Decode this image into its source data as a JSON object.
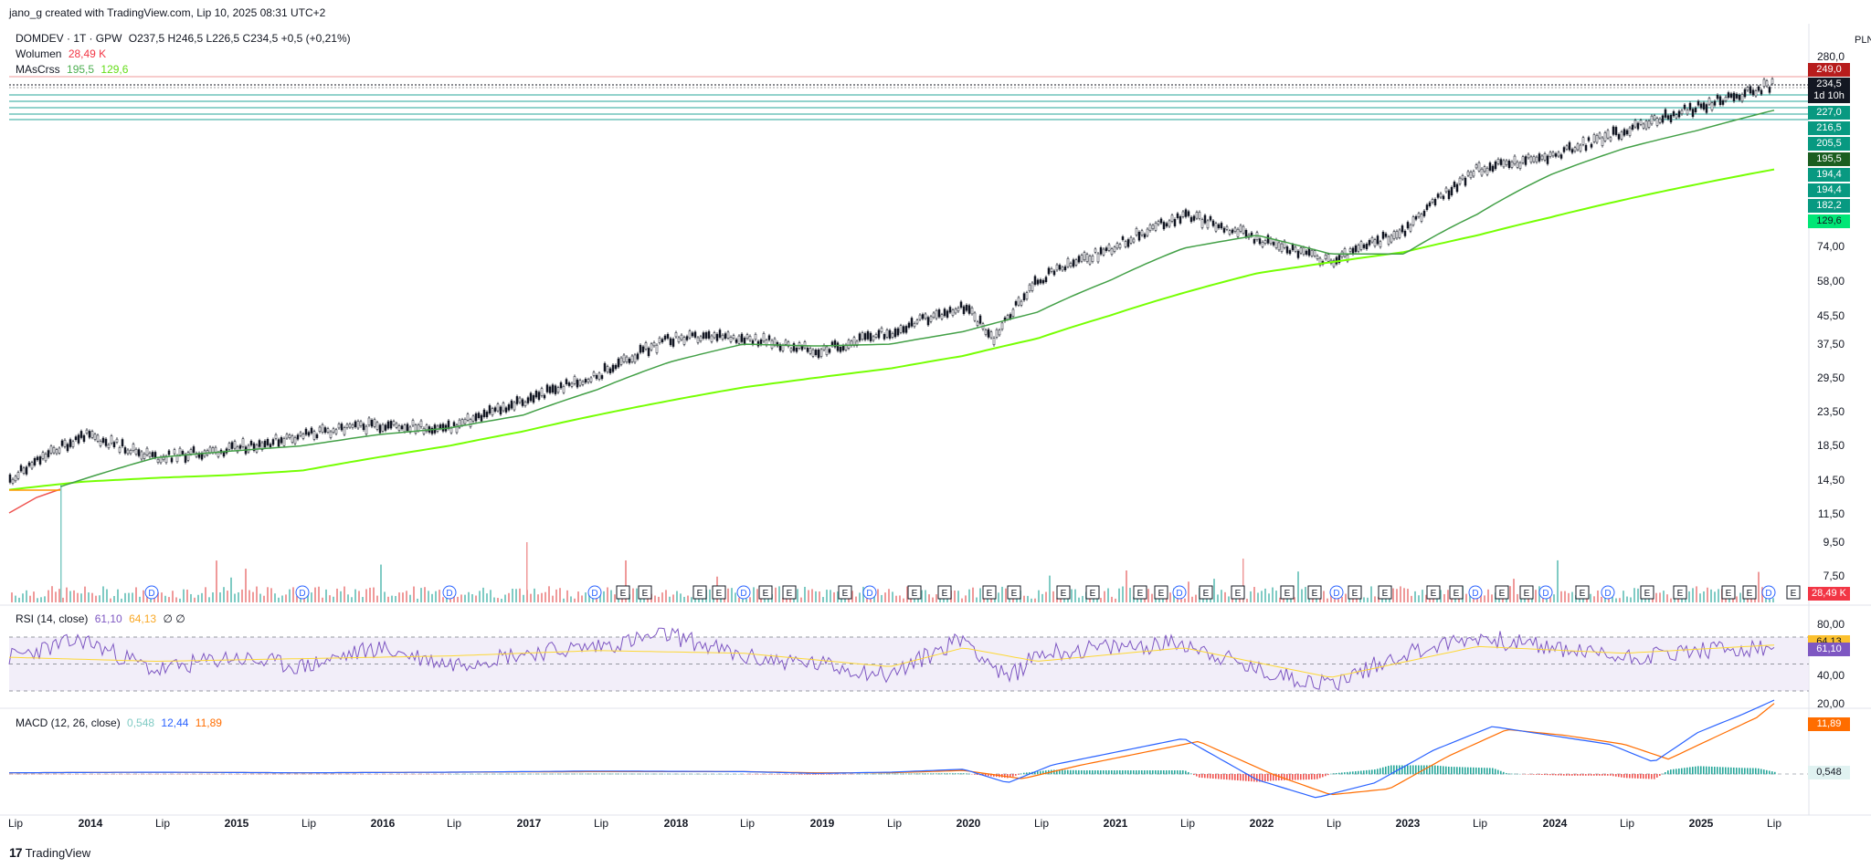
{
  "header": {
    "text": "jano_g created with TradingView.com, Lip 10, 2025 08:31 UTC+2"
  },
  "footer": {
    "brand": "TradingView"
  },
  "price_legend": {
    "symbol": "DOMDEV · 1T · GPW",
    "ohlc": "O237,5  H246,5  L226,5  C234,5  +0,5 (+0,21%)",
    "volume_label": "Wolumen",
    "volume_value": "28,49 K",
    "ma_label": "MAsCrss",
    "ma1_value": "195,5",
    "ma2_value": "129,6"
  },
  "rsi_legend": {
    "label": "RSI (14, close)",
    "v1": "61,10",
    "v2": "64,13",
    "v3": "∅  ∅"
  },
  "macd_legend": {
    "label": "MACD (12, 26, close)",
    "v1": "0,548",
    "v2": "12,44",
    "v3": "11,89"
  },
  "currency": "PLN",
  "colors": {
    "ma_fast": "#4caf50",
    "ma_slow": "#76ff03",
    "rsi": "#7e57c2",
    "rsi_ma": "#fdd835",
    "macd": "#2962ff",
    "signal": "#ff6d00",
    "up": "#26a69a",
    "down": "#ef5350"
  },
  "chart_data": [
    {
      "type": "line",
      "title": "DOMDEV · 1T · GPW",
      "scale": "log",
      "x_ticks": [
        "Lip",
        "2014",
        "Lip",
        "2015",
        "Lip",
        "2016",
        "Lip",
        "2017",
        "Lip",
        "2018",
        "Lip",
        "2019",
        "Lip",
        "2020",
        "Lip",
        "2021",
        "Lip",
        "2022",
        "Lip",
        "2023",
        "Lip",
        "2024",
        "Lip",
        "2025",
        "Lip"
      ],
      "y_ticks": [
        "280,0",
        "74,00",
        "58,00",
        "45,50",
        "37,50",
        "29,50",
        "23,50",
        "18,50",
        "14,50",
        "11,50",
        "9,50",
        "7,50"
      ],
      "price_labels": [
        {
          "text": "249,0",
          "color": "#b71c1c"
        },
        {
          "text": "234,5",
          "color": "#131722"
        },
        {
          "text": "1d 10h",
          "color": "#131722"
        },
        {
          "text": "227,0",
          "color": "#089981"
        },
        {
          "text": "216,5",
          "color": "#089981"
        },
        {
          "text": "205,5",
          "color": "#089981"
        },
        {
          "text": "195,5",
          "color": "#1b5e20"
        },
        {
          "text": "194,4",
          "color": "#089981"
        },
        {
          "text": "194,4",
          "color": "#089981"
        },
        {
          "text": "182,2",
          "color": "#089981"
        },
        {
          "text": "129,6",
          "color": "#00e676"
        },
        {
          "text": "28,49 K",
          "color": "#f23645"
        }
      ],
      "series": [
        {
          "name": "DOMDEV",
          "x": [
            2013.5,
            2014.0,
            2014.5,
            2015.0,
            2015.5,
            2016.0,
            2016.5,
            2017.0,
            2017.5,
            2018.0,
            2018.5,
            2019.0,
            2019.5,
            2020.0,
            2020.2,
            2020.5,
            2021.0,
            2021.5,
            2022.0,
            2022.5,
            2023.0,
            2023.5,
            2024.0,
            2024.5,
            2025.0,
            2025.52
          ],
          "values": [
            15.0,
            20.5,
            17.5,
            18.5,
            20.5,
            22.0,
            21.5,
            26.0,
            31.0,
            40.0,
            40.5,
            36.5,
            42.0,
            50.0,
            40.0,
            60.0,
            75.0,
            95.0,
            80.0,
            68.0,
            85.0,
            130.0,
            142.0,
            170.0,
            200.0,
            234.5
          ]
        },
        {
          "name": "MA fast",
          "x": [
            2013.85,
            2014.5,
            2015.0,
            2015.5,
            2016.0,
            2016.5,
            2017.0,
            2017.5,
            2018.0,
            2018.5,
            2019.0,
            2019.5,
            2020.0,
            2020.5,
            2021.0,
            2021.5,
            2022.0,
            2022.5,
            2023.0,
            2023.5,
            2024.0,
            2024.5,
            2025.0,
            2025.52
          ],
          "values": [
            14.3,
            17.5,
            18.3,
            19.0,
            20.5,
            21.5,
            23.5,
            28.0,
            34.0,
            38.5,
            38.0,
            38.5,
            42.0,
            48.0,
            60.0,
            75.0,
            82.0,
            72.0,
            72.0,
            95.0,
            125.0,
            150.0,
            170.0,
            195.5
          ]
        },
        {
          "name": "MA slow",
          "x": [
            2013.5,
            2014.0,
            2014.5,
            2015.0,
            2015.5,
            2016.0,
            2016.5,
            2017.0,
            2017.5,
            2018.0,
            2018.5,
            2019.0,
            2019.5,
            2020.0,
            2020.5,
            2021.0,
            2021.5,
            2022.0,
            2022.5,
            2023.0,
            2023.5,
            2024.0,
            2024.5,
            2025.0,
            2025.52
          ],
          "values": [
            14.0,
            14.8,
            15.2,
            15.5,
            16.0,
            17.5,
            19.0,
            21.0,
            23.5,
            26.0,
            28.5,
            30.5,
            32.5,
            35.5,
            40.0,
            47.0,
            55.0,
            63.0,
            68.0,
            73.0,
            82.0,
            93.0,
            105.0,
            117.0,
            129.6
          ]
        }
      ]
    },
    {
      "type": "line",
      "title": "RSI (14, close)",
      "y_ticks": [
        "80,00",
        "40,00",
        "20,00"
      ],
      "bands": [
        30,
        50,
        70
      ],
      "series": [
        {
          "x": [
            2013.5,
            2014.0,
            2014.5,
            2015.0,
            2015.5,
            2016.0,
            2016.5,
            2017.0,
            2017.5,
            2018.0,
            2018.5,
            2019.0,
            2019.5,
            2020.0,
            2020.3,
            2020.5,
            2021.0,
            2021.5,
            2022.0,
            2022.5,
            2023.0,
            2023.5,
            2024.0,
            2024.5,
            2025.0,
            2025.52
          ],
          "values": [
            55,
            68,
            45,
            55,
            48,
            62,
            50,
            58,
            63,
            72,
            55,
            50,
            42,
            70,
            38,
            58,
            62,
            66,
            45,
            35,
            58,
            70,
            62,
            55,
            60,
            61.1
          ]
        },
        {
          "x": [
            2013.5,
            2014.5,
            2015.5,
            2016.5,
            2017.5,
            2018.5,
            2019.5,
            2020.0,
            2020.5,
            2021.5,
            2022.5,
            2023.5,
            2024.5,
            2025.52
          ],
          "values": [
            55,
            52,
            54,
            56,
            60,
            58,
            48,
            62,
            52,
            62,
            40,
            63,
            58,
            64.13
          ]
        }
      ]
    },
    {
      "type": "line",
      "title": "MACD (12, 26, close)",
      "y_ticks": [
        "11,89",
        "0,548"
      ],
      "series": [
        {
          "x": [
            2013.5,
            2014.5,
            2015.5,
            2016.5,
            2017.5,
            2018.5,
            2019.0,
            2019.5,
            2020.0,
            2020.3,
            2020.6,
            2021.0,
            2021.5,
            2022.0,
            2022.4,
            2022.8,
            2023.2,
            2023.6,
            2024.0,
            2024.4,
            2024.7,
            2025.0,
            2025.3,
            2025.52
          ],
          "values": [
            0.2,
            0.3,
            0.2,
            0.3,
            0.5,
            0.4,
            0.1,
            0.3,
            0.8,
            -1.5,
            1.5,
            3.5,
            6.0,
            -1.0,
            -4.0,
            -1.5,
            4.0,
            8.0,
            6.5,
            5.0,
            2.0,
            7.0,
            10.0,
            12.44
          ]
        },
        {
          "x": [
            2013.5,
            2014.5,
            2015.5,
            2016.5,
            2017.5,
            2018.5,
            2019.0,
            2019.5,
            2020.0,
            2020.4,
            2020.8,
            2021.2,
            2021.6,
            2022.1,
            2022.5,
            2022.9,
            2023.3,
            2023.7,
            2024.1,
            2024.5,
            2024.8,
            2025.1,
            2025.4,
            2025.52
          ],
          "values": [
            0.2,
            0.3,
            0.2,
            0.3,
            0.4,
            0.4,
            0.2,
            0.2,
            0.6,
            -0.8,
            1.5,
            3.5,
            5.5,
            0.0,
            -3.5,
            -2.5,
            3.0,
            7.5,
            6.5,
            5.0,
            2.5,
            6.0,
            9.5,
            11.89
          ]
        }
      ]
    }
  ]
}
